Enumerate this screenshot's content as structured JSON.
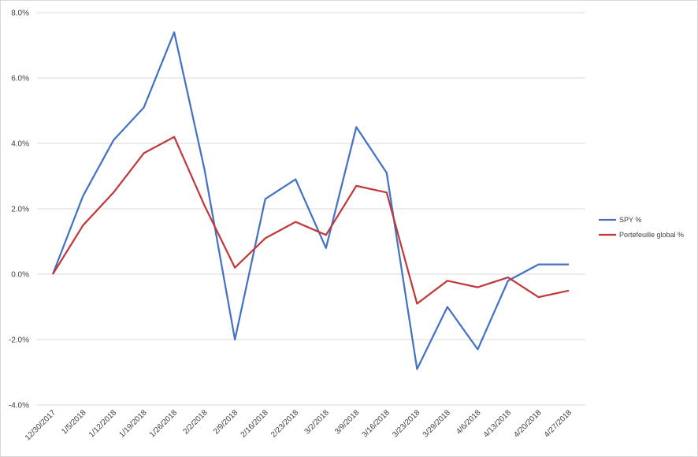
{
  "chart_data": {
    "type": "line",
    "title": "",
    "xlabel": "",
    "ylabel": "",
    "categories": [
      "12/30/2017",
      "1/5/2018",
      "1/12/2018",
      "1/19/2018",
      "1/26/2018",
      "2/2/2018",
      "2/9/2018",
      "2/16/2018",
      "2/23/2018",
      "3/2/2018",
      "3/9/2018",
      "3/16/2018",
      "3/23/2018",
      "3/29/2018",
      "4/6/2018",
      "4/13/2018",
      "4/20/2018",
      "4/27/2018"
    ],
    "ylim": [
      -4.0,
      8.0
    ],
    "yticks": [
      "-4.0%",
      "-2.0%",
      "0.0%",
      "2.0%",
      "4.0%",
      "6.0%",
      "8.0%"
    ],
    "ytick_values": [
      -4,
      -2,
      0,
      2,
      4,
      6,
      8
    ],
    "grid": true,
    "legend_position": "right",
    "series": [
      {
        "name": "SPY %",
        "color": "#4472c4",
        "values": [
          0.0,
          2.4,
          4.1,
          5.1,
          7.4,
          3.2,
          -2.0,
          2.3,
          2.9,
          0.8,
          4.5,
          3.1,
          -2.9,
          -1.0,
          -2.3,
          -0.2,
          0.3,
          0.3
        ]
      },
      {
        "name": "Portefeuille global %",
        "color": "#c0393b",
        "values": [
          0.0,
          1.5,
          2.5,
          3.7,
          4.2,
          2.1,
          0.2,
          1.1,
          1.6,
          1.2,
          2.7,
          2.5,
          -0.9,
          -0.2,
          -0.4,
          -0.1,
          -0.7,
          -0.5
        ]
      }
    ]
  }
}
